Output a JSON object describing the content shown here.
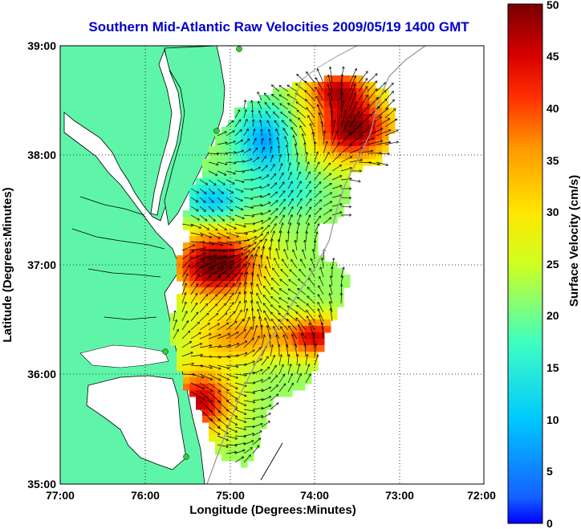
{
  "title": "Southern Mid-Atlantic Raw Velocities 2009/05/19 1400 GMT",
  "x_axis": {
    "label": "Longitude (Degrees:Minutes)",
    "ticks": [
      "77:00",
      "76:00",
      "75:00",
      "74:00",
      "73:00",
      "72:00"
    ]
  },
  "y_axis": {
    "label": "Latitude (Degrees:Minutes)",
    "ticks": [
      "39:00",
      "38:00",
      "37:00",
      "36:00",
      "35:00"
    ]
  },
  "colorbar": {
    "label": "Surface Velocity (cm/s)",
    "ticks": [
      "50",
      "45",
      "40",
      "35",
      "30",
      "25",
      "20",
      "15",
      "10",
      "5",
      "0"
    ],
    "min": 0,
    "max": 50,
    "colormap": "jet"
  },
  "map": {
    "lon_range": [
      -77,
      -72
    ],
    "lat_range": [
      35,
      39
    ],
    "grid": "dotted",
    "land_color": "#5ff5a8",
    "station_color": "#33cc33"
  }
}
